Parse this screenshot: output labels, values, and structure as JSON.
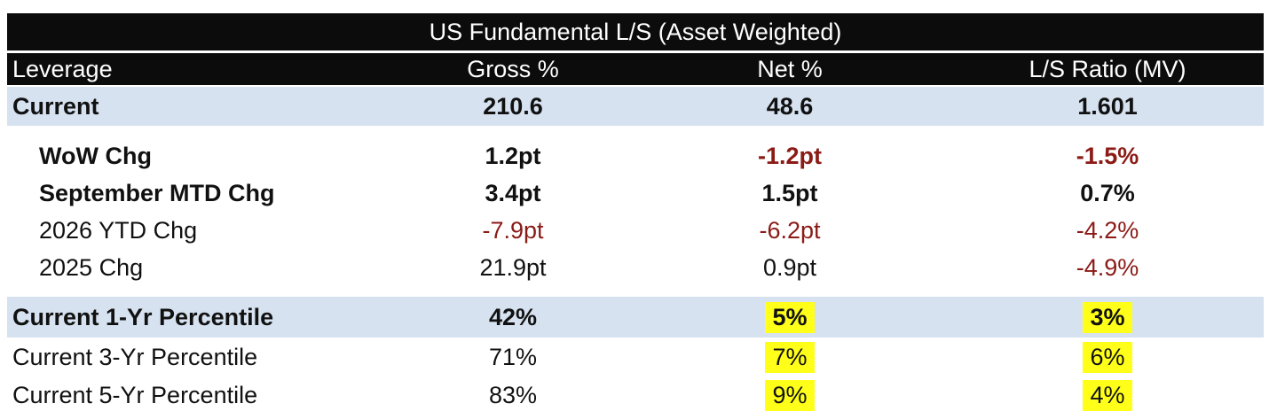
{
  "title": "US Fundamental L/S (Asset Weighted)",
  "headers": [
    "Leverage",
    "Gross %",
    "Net %",
    "L/S Ratio (MV)"
  ],
  "current": {
    "label": "Current",
    "gross": "210.6",
    "net": "48.6",
    "ratio": "1.601"
  },
  "changes": [
    {
      "label": "WoW Chg",
      "gross": "1.2pt",
      "net": "-1.2pt",
      "ratio": "-1.5%"
    },
    {
      "label": "September MTD Chg",
      "gross": "3.4pt",
      "net": "1.5pt",
      "ratio": "0.7%"
    },
    {
      "label": "2026 YTD Chg",
      "gross": "-7.9pt",
      "net": "-6.2pt",
      "ratio": "-4.2%"
    },
    {
      "label": "2025 Chg",
      "gross": "21.9pt",
      "net": "0.9pt",
      "ratio": "-4.9%"
    }
  ],
  "percentiles": [
    {
      "label": "Current 1-Yr Percentile",
      "gross": "42%",
      "net": "5%",
      "ratio": "3%"
    },
    {
      "label": "Current 3-Yr Percentile",
      "gross": "71%",
      "net": "7%",
      "ratio": "6%"
    },
    {
      "label": "Current 5-Yr Percentile",
      "gross": "83%",
      "net": "9%",
      "ratio": "4%"
    }
  ],
  "colors": {
    "header_bg": "#0c0c0c",
    "band": "#d6e2f0",
    "negative": "#8b1b16",
    "highlight": "#ffff1a"
  }
}
